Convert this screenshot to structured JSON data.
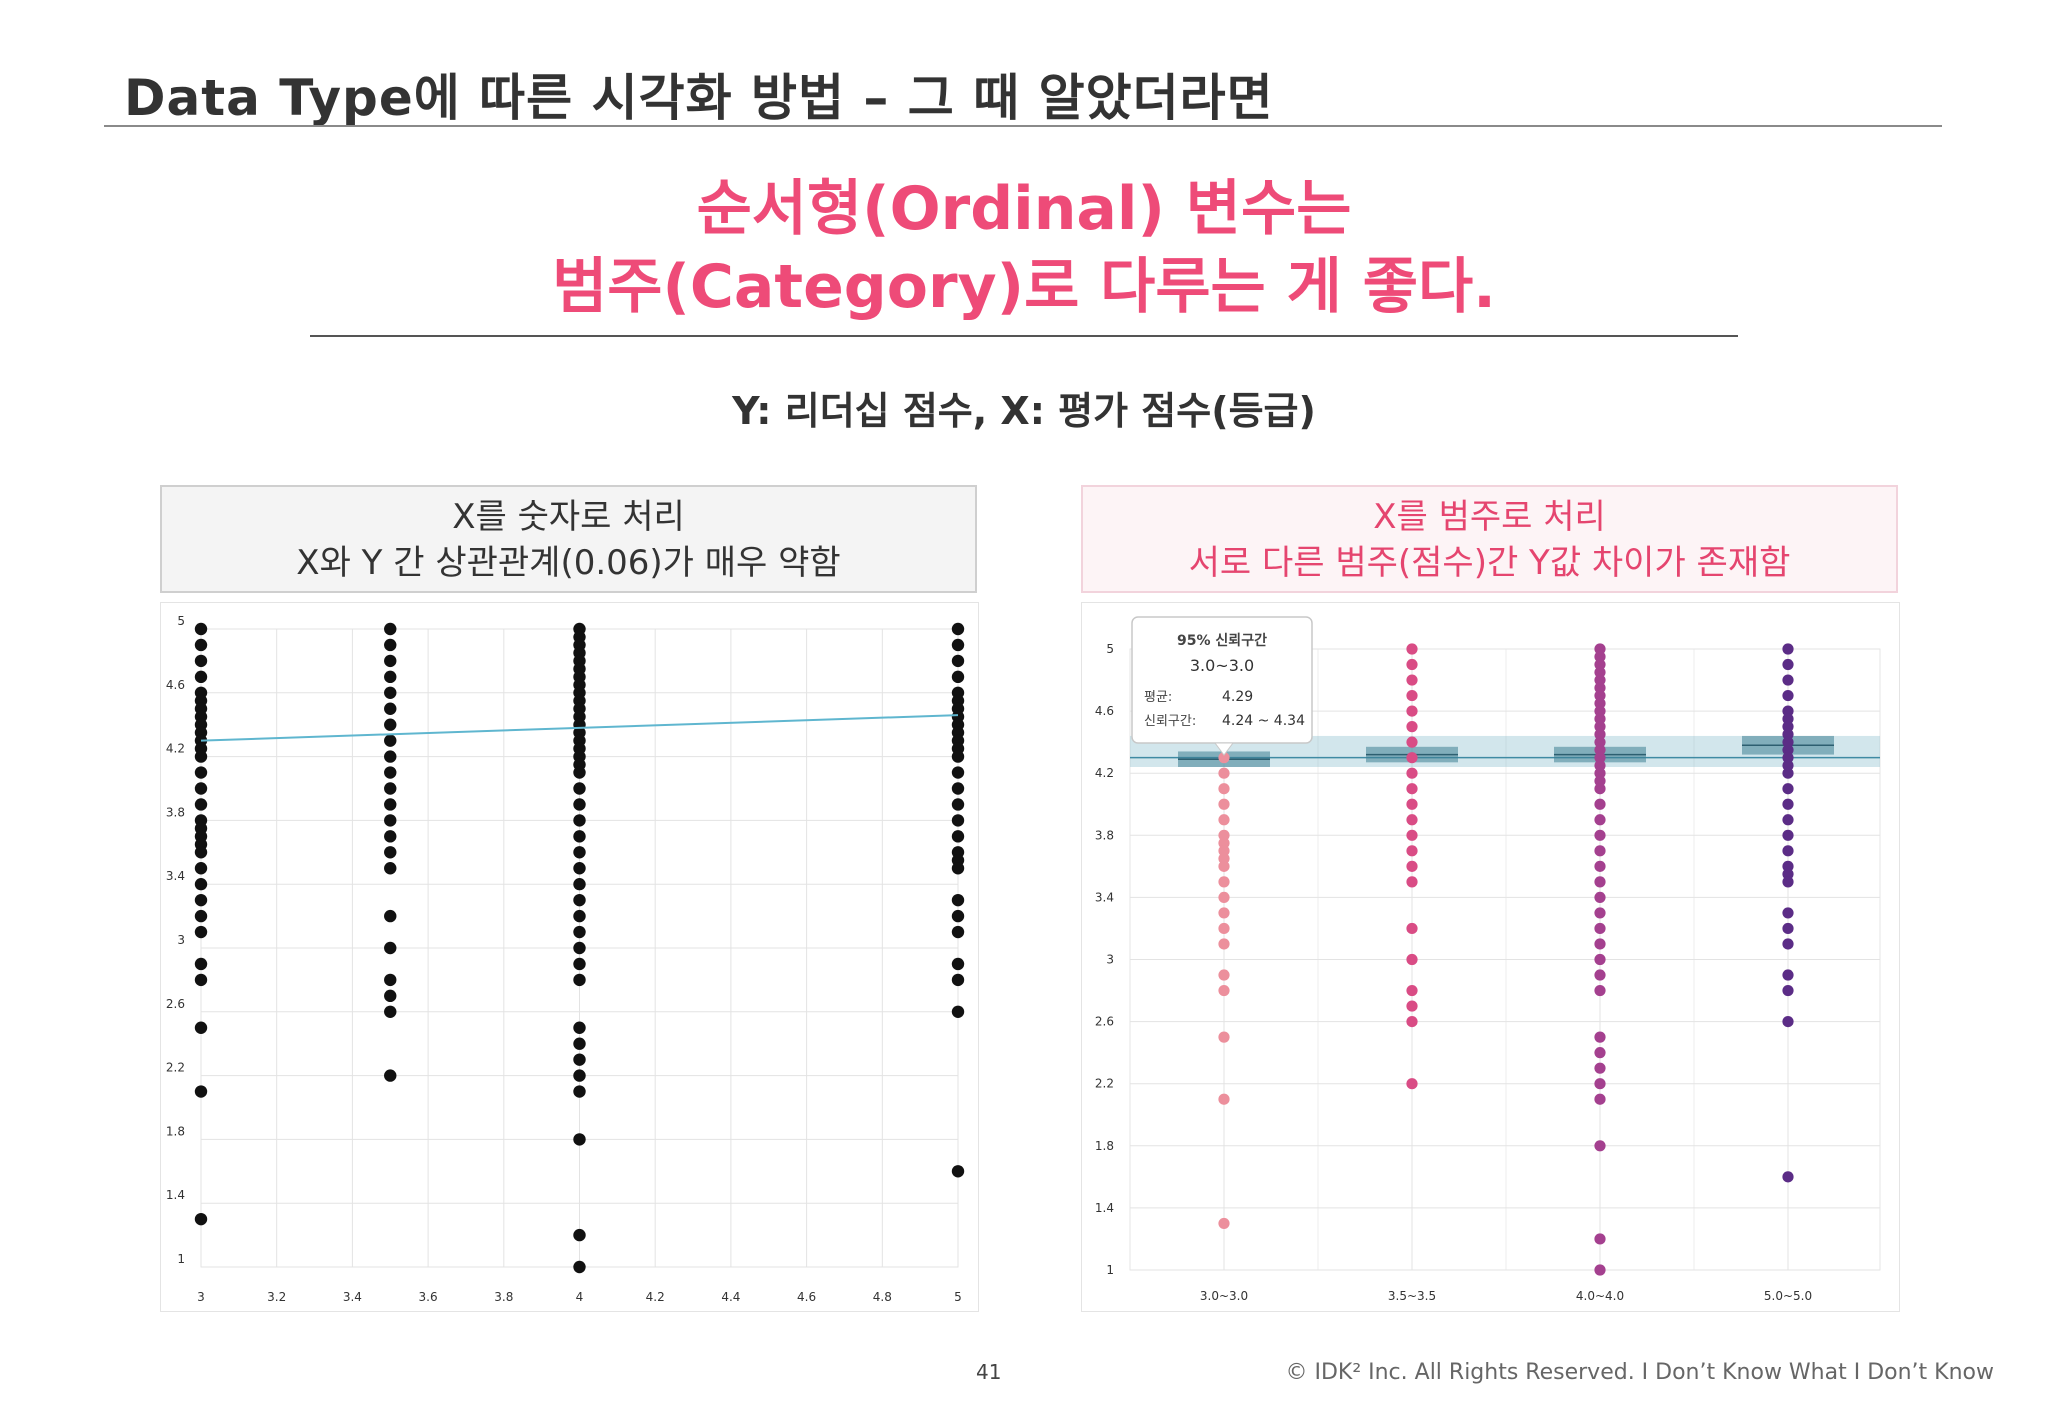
{
  "slide": {
    "title": "Data Type에 따른 시각화 방법 – 그 때 알았더라면",
    "headline_line1": "순서형(Ordinal) 변수는",
    "headline_line2": "범주(Category)로 다루는 게 좋다.",
    "subtitle": "Y: 리더십 점수, X: 평가 점수(등급)",
    "left_caption_line1": "X를 숫자로 처리",
    "left_caption_line2": "X와 Y 간 상관관계(0.06)가 매우 약함",
    "right_caption_line1": "X를 범주로 처리",
    "right_caption_line2": "서로 다른 범주(점수)간 Y값 차이가 존재함",
    "page_number": "41",
    "copyright": "© IDK² Inc. All Rights Reserved.  I Don’t Know What I Don’t Know"
  },
  "colors": {
    "title": "#333333",
    "accent_pink": "#ee4b78",
    "trend_line": "#5fb6cf",
    "category_colors": [
      "#ec8f9c",
      "#d94c85",
      "#a4408f",
      "#5b2c86"
    ]
  },
  "chart_data": [
    {
      "type": "scatter",
      "title": "",
      "xlabel": "",
      "ylabel": "",
      "x_ticks": [
        "3",
        "3.2",
        "3.4",
        "3.6",
        "3.8",
        "4",
        "4.2",
        "4.4",
        "4.6",
        "4.8",
        "5"
      ],
      "y_ticks": [
        "1",
        "1.4",
        "1.8",
        "2.2",
        "2.6",
        "3",
        "3.4",
        "3.8",
        "4.2",
        "4.6",
        "5"
      ],
      "xlim": [
        3,
        5
      ],
      "ylim": [
        1,
        5
      ],
      "grid": true,
      "trend_line": {
        "x": [
          3,
          5
        ],
        "y": [
          4.3,
          4.46
        ]
      },
      "series": [
        {
          "x": 3.0,
          "y": [
            5,
            4.9,
            4.8,
            4.7,
            4.6,
            4.55,
            4.5,
            4.45,
            4.4,
            4.35,
            4.3,
            4.25,
            4.2,
            4.1,
            4.0,
            3.9,
            3.8,
            3.75,
            3.7,
            3.65,
            3.6,
            3.5,
            3.4,
            3.3,
            3.2,
            3.1,
            2.9,
            2.8,
            2.5,
            2.1,
            1.3
          ]
        },
        {
          "x": 3.5,
          "y": [
            5,
            4.9,
            4.8,
            4.7,
            4.6,
            4.5,
            4.4,
            4.3,
            4.2,
            4.1,
            4.0,
            3.9,
            3.8,
            3.7,
            3.6,
            3.5,
            3.2,
            3.0,
            2.8,
            2.7,
            2.6,
            2.2
          ]
        },
        {
          "x": 4.0,
          "y": [
            5,
            4.95,
            4.9,
            4.85,
            4.8,
            4.75,
            4.7,
            4.65,
            4.6,
            4.55,
            4.5,
            4.45,
            4.4,
            4.35,
            4.3,
            4.25,
            4.2,
            4.15,
            4.1,
            4.0,
            3.9,
            3.8,
            3.7,
            3.6,
            3.5,
            3.4,
            3.3,
            3.2,
            3.1,
            3.0,
            2.9,
            2.8,
            2.5,
            2.4,
            2.3,
            2.2,
            2.1,
            1.8,
            1.2,
            1.0
          ]
        },
        {
          "x": 5.0,
          "y": [
            5,
            4.9,
            4.8,
            4.7,
            4.6,
            4.55,
            4.5,
            4.45,
            4.4,
            4.35,
            4.3,
            4.25,
            4.2,
            4.1,
            4.0,
            3.9,
            3.8,
            3.7,
            3.6,
            3.55,
            3.5,
            3.3,
            3.2,
            3.1,
            2.9,
            2.8,
            2.6,
            1.6
          ]
        }
      ]
    },
    {
      "type": "scatter",
      "title": "",
      "xlabel": "",
      "ylabel": "",
      "categories": [
        "3.0~3.0",
        "3.5~3.5",
        "4.0~4.0",
        "5.0~5.0"
      ],
      "y_ticks": [
        "1",
        "1.4",
        "1.8",
        "2.2",
        "2.6",
        "3",
        "3.4",
        "3.8",
        "4.2",
        "4.6",
        "5"
      ],
      "ylim": [
        1,
        5
      ],
      "grid": true,
      "confidence_intervals": [
        {
          "category": "3.0~3.0",
          "mean": 4.29,
          "low": 4.24,
          "high": 4.34
        },
        {
          "category": "3.5~3.5",
          "mean": 4.32,
          "low": 4.27,
          "high": 4.37
        },
        {
          "category": "4.0~4.0",
          "mean": 4.32,
          "low": 4.27,
          "high": 4.37
        },
        {
          "category": "5.0~5.0",
          "mean": 4.38,
          "low": 4.32,
          "high": 4.44
        }
      ],
      "tooltip": {
        "heading": "95% 신뢰구간",
        "category": "3.0~3.0",
        "mean_label": "평균:",
        "mean_value": "4.29",
        "ci_label": "신뢰구간:",
        "ci_value": "4.24 ~ 4.34"
      },
      "series": [
        {
          "category": "3.0~3.0",
          "y": [
            4.3,
            4.2,
            4.1,
            4.0,
            3.9,
            3.8,
            3.75,
            3.7,
            3.65,
            3.6,
            3.5,
            3.4,
            3.3,
            3.2,
            3.1,
            2.9,
            2.8,
            2.5,
            2.1,
            1.3
          ]
        },
        {
          "category": "3.5~3.5",
          "y": [
            5,
            4.9,
            4.8,
            4.7,
            4.6,
            4.5,
            4.4,
            4.3,
            4.2,
            4.1,
            4.0,
            3.9,
            3.8,
            3.7,
            3.6,
            3.5,
            3.2,
            3.0,
            2.8,
            2.7,
            2.6,
            2.2
          ]
        },
        {
          "category": "4.0~4.0",
          "y": [
            5,
            4.95,
            4.9,
            4.85,
            4.8,
            4.75,
            4.7,
            4.65,
            4.6,
            4.55,
            4.5,
            4.45,
            4.4,
            4.35,
            4.3,
            4.25,
            4.2,
            4.15,
            4.1,
            4.0,
            3.9,
            3.8,
            3.7,
            3.6,
            3.5,
            3.4,
            3.3,
            3.2,
            3.1,
            3.0,
            2.9,
            2.8,
            2.5,
            2.4,
            2.3,
            2.2,
            2.1,
            1.8,
            1.2,
            1.0
          ]
        },
        {
          "category": "5.0~5.0",
          "y": [
            5,
            4.9,
            4.8,
            4.7,
            4.6,
            4.55,
            4.5,
            4.45,
            4.4,
            4.35,
            4.3,
            4.25,
            4.2,
            4.1,
            4.0,
            3.9,
            3.8,
            3.7,
            3.6,
            3.55,
            3.5,
            3.3,
            3.2,
            3.1,
            2.9,
            2.8,
            2.6,
            1.6
          ]
        }
      ]
    }
  ]
}
